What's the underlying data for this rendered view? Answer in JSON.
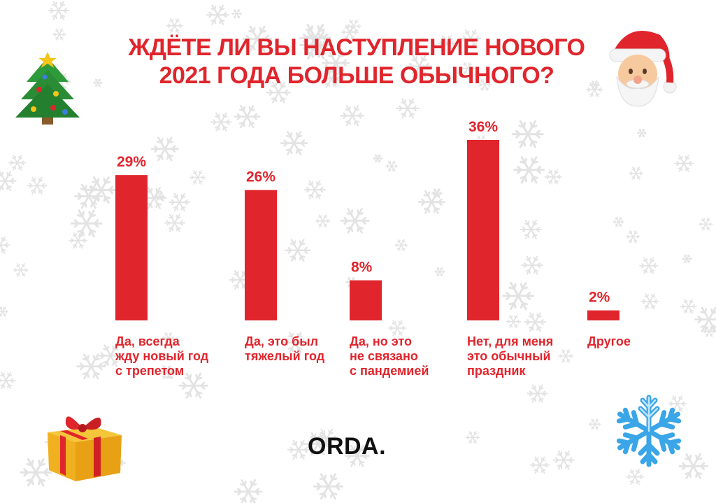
{
  "title_lines": [
    "ЖДЁТЕ ЛИ ВЫ НАСТУПЛЕНИЕ НОВОГО",
    "2021 ГОДА БОЛЬШЕ ОБЫЧНОГО?"
  ],
  "brand": "ORDA.",
  "colors": {
    "accent": "#e0252c",
    "snow": "#e3e3e3",
    "text_dark": "#111111"
  },
  "icons": [
    "christmas-tree-icon",
    "santa-icon",
    "gift-icon",
    "snowflake-icon"
  ],
  "chart_data": {
    "type": "bar",
    "categories": [
      "Да, всегда жду новый год с трепетом",
      "Да, это был тяжелый год",
      "Да, но это не связано с пандемией",
      "Нет, для меня это обычный праздник",
      "Другое"
    ],
    "category_lines": [
      [
        "Да, всегда",
        "жду новый год",
        "с трепетом"
      ],
      [
        "Да, это был",
        "тяжелый год"
      ],
      [
        "Да, но это",
        "не связано",
        "с пандемией"
      ],
      [
        "Нет, для меня",
        "это обычный",
        "праздник"
      ],
      [
        "Другое"
      ]
    ],
    "values": [
      29,
      26,
      8,
      36,
      2
    ],
    "value_labels": [
      "29%",
      "26%",
      "8%",
      "36%",
      "2%"
    ],
    "unit": "%",
    "ylim": [
      0,
      36
    ],
    "grid": false,
    "legend": "none"
  }
}
